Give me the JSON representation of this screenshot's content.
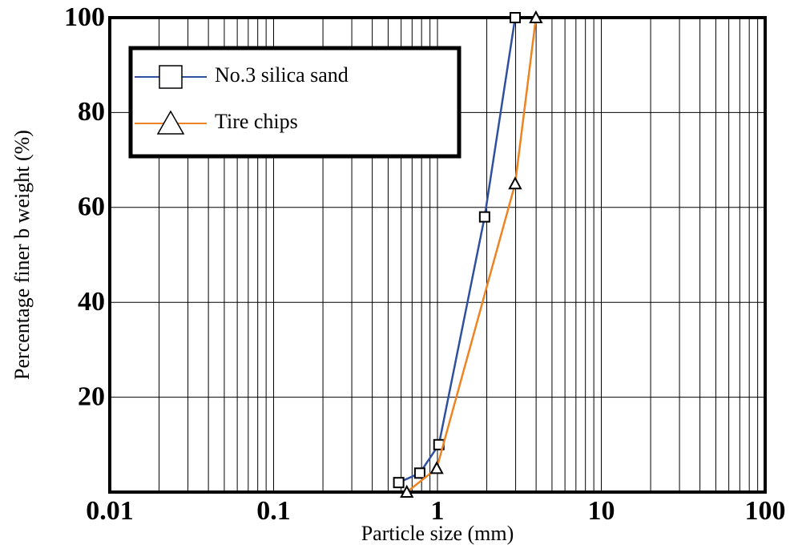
{
  "chart_data": {
    "type": "line",
    "x_label": "Particle size (mm)",
    "y_label": "Percentage finer b weight (%)",
    "x_scale": "log",
    "xlim": [
      0.01,
      100
    ],
    "xticks": [
      0.01,
      0.1,
      1,
      10,
      100
    ],
    "ylim": [
      0,
      100
    ],
    "yticks": [
      20,
      40,
      60,
      80,
      100
    ],
    "grid": true,
    "minor_grid": true,
    "legend": "upper left",
    "series": [
      {
        "name": "No.3 silica sand",
        "color": "#2f4f9f",
        "marker": "square",
        "x": [
          0.58,
          0.78,
          1.02,
          1.94,
          2.98
        ],
        "values": [
          2,
          4,
          10,
          58,
          100
        ]
      },
      {
        "name": "Tire chips",
        "color": "#ee8322",
        "marker": "triangle",
        "x": [
          0.65,
          0.99,
          2.98,
          3.99
        ],
        "values": [
          0,
          5,
          65,
          100
        ]
      }
    ]
  }
}
